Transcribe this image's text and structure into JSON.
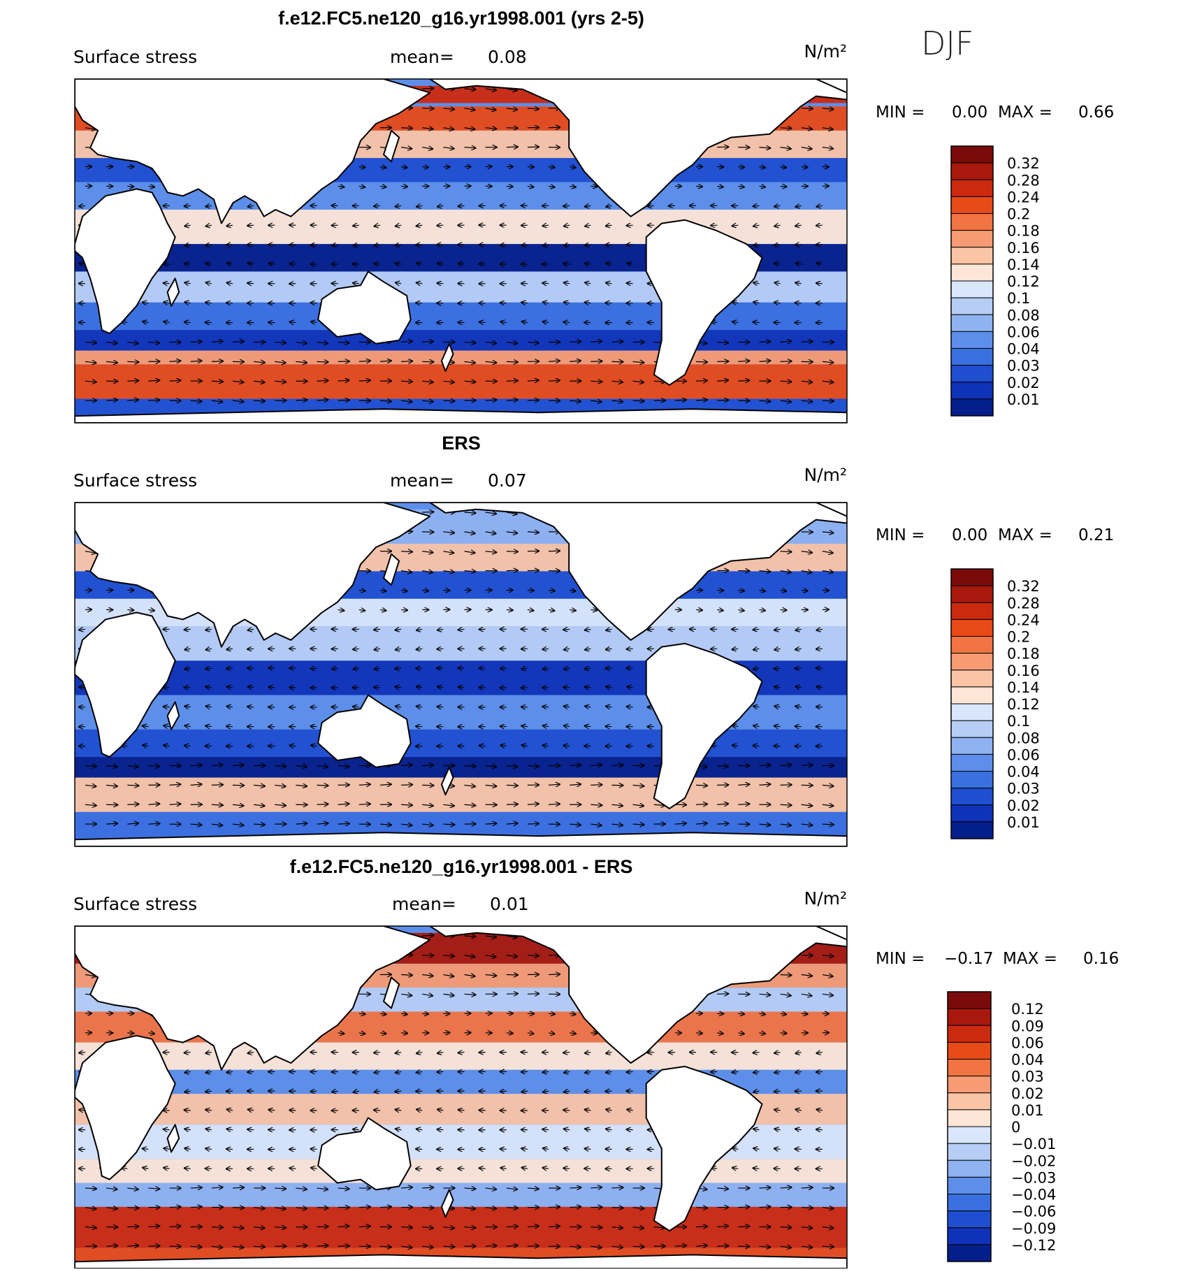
{
  "season": "DJF",
  "panels": [
    {
      "title": "f.e12.FC5.ne120_g16.yr1998.001 (yrs 2-5)",
      "variable": "Surface stress",
      "mean_label": "mean=",
      "mean_value": "0.08",
      "units": "N/m²",
      "min_label": "MIN =",
      "min_value": "0.00",
      "max_label": "MAX =",
      "max_value": "0.66",
      "colorbar_labels": [
        "0.32",
        "0.28",
        "0.24",
        "0.2",
        "0.18",
        "0.16",
        "0.14",
        "0.12",
        "0.1",
        "0.08",
        "0.06",
        "0.04",
        "0.03",
        "0.02",
        "0.01"
      ],
      "colorbar_colors": [
        "#7a0b0a",
        "#a8180d",
        "#cc2a0f",
        "#e84a18",
        "#f17443",
        "#f69b73",
        "#fac4a5",
        "#fde6d6",
        "#d9e6fb",
        "#b6cdf6",
        "#8fb2f1",
        "#5d8fea",
        "#3a6fe0",
        "#1f4fd0",
        "#0f33b8",
        "#041e8a"
      ],
      "map_style": "model"
    },
    {
      "title": "ERS",
      "variable": "Surface stress",
      "mean_label": "mean=",
      "mean_value": "0.07",
      "units": "N/m²",
      "min_label": "MIN =",
      "min_value": "0.00",
      "max_label": "MAX =",
      "max_value": "0.21",
      "colorbar_labels": [
        "0.32",
        "0.28",
        "0.24",
        "0.2",
        "0.18",
        "0.16",
        "0.14",
        "0.12",
        "0.1",
        "0.08",
        "0.06",
        "0.04",
        "0.03",
        "0.02",
        "0.01"
      ],
      "colorbar_colors": [
        "#7a0b0a",
        "#a8180d",
        "#cc2a0f",
        "#e84a18",
        "#f17443",
        "#f69b73",
        "#fac4a5",
        "#fde6d6",
        "#d9e6fb",
        "#b6cdf6",
        "#8fb2f1",
        "#5d8fea",
        "#3a6fe0",
        "#1f4fd0",
        "#0f33b8",
        "#041e8a"
      ],
      "map_style": "obs"
    },
    {
      "title": "f.e12.FC5.ne120_g16.yr1998.001 - ERS",
      "variable": "Surface stress",
      "mean_label": "mean=",
      "mean_value": "0.01",
      "units": "N/m²",
      "min_label": "MIN =",
      "min_value": "−0.17",
      "max_label": "MAX =",
      "max_value": "0.16",
      "colorbar_labels": [
        "0.12",
        "0.09",
        "0.06",
        "0.04",
        "0.03",
        "0.02",
        "0.01",
        "0",
        "−0.01",
        "−0.02",
        "−0.03",
        "−0.04",
        "−0.06",
        "−0.09",
        "−0.12"
      ],
      "colorbar_colors": [
        "#7a0b0a",
        "#a8180d",
        "#cc2a0f",
        "#e84a18",
        "#f17443",
        "#f69b73",
        "#fac4a5",
        "#fde6d6",
        "#d9e6fb",
        "#b6cdf6",
        "#8fb2f1",
        "#5d8fea",
        "#3a6fe0",
        "#1f4fd0",
        "#0f33b8",
        "#041e8a"
      ],
      "map_style": "diff"
    }
  ]
}
